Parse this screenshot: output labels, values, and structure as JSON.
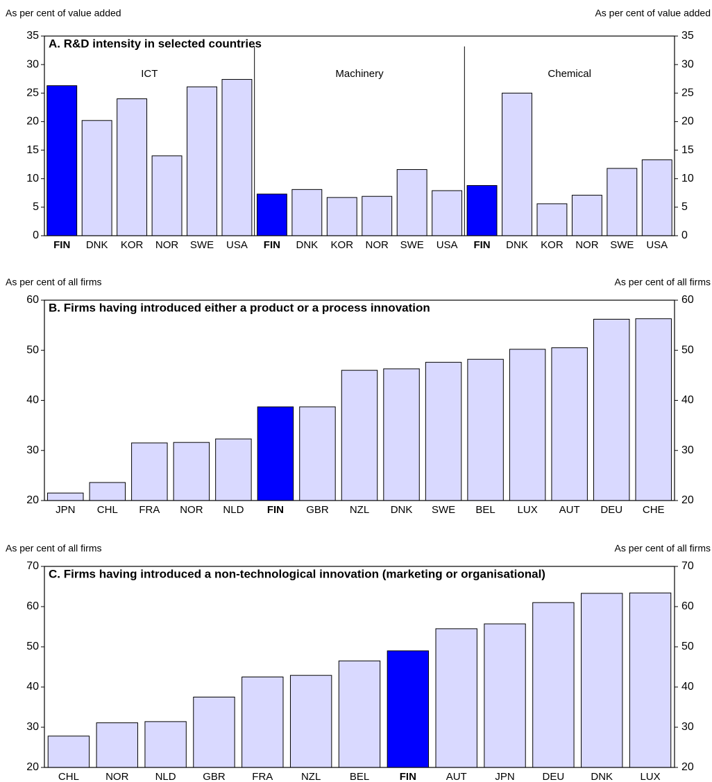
{
  "chart_data": [
    {
      "type": "bar",
      "title": "A. R&D intensity in selected countries",
      "y_label": "As per cent of value added",
      "y2_label": "As per cent of value added",
      "groups": [
        "ICT",
        "Machinery",
        "Chemical"
      ],
      "categories": [
        "FIN",
        "DNK",
        "KOR",
        "NOR",
        "SWE",
        "USA",
        "FIN",
        "DNK",
        "KOR",
        "NOR",
        "SWE",
        "USA",
        "FIN",
        "DNK",
        "KOR",
        "NOR",
        "SWE",
        "USA"
      ],
      "values": [
        26.3,
        20.2,
        24.0,
        14.0,
        26.1,
        27.4,
        7.3,
        8.1,
        6.7,
        6.9,
        11.6,
        7.9,
        8.8,
        25.0,
        5.6,
        7.1,
        11.8,
        13.3
      ],
      "color": "#d9d9ff",
      "highlight": "FIN",
      "highlight_color": "#0000ff",
      "ylim": [
        0,
        35
      ],
      "yticks": [
        0,
        5,
        10,
        15,
        20,
        25,
        30,
        35
      ],
      "y2lim": [
        0,
        35
      ],
      "y2ticks": [
        0,
        5,
        10,
        15,
        20,
        25,
        30,
        35
      ]
    },
    {
      "type": "bar",
      "title": "B. Firms having introduced either a product or a process innovation",
      "y_label": "As per cent of all firms",
      "y2_label": "As per cent of all firms",
      "categories": [
        "JPN",
        "CHL",
        "FRA",
        "NOR",
        "NLD",
        "FIN",
        "GBR",
        "NZL",
        "DNK",
        "SWE",
        "BEL",
        "LUX",
        "AUT",
        "DEU",
        "CHE"
      ],
      "values": [
        21.5,
        23.6,
        31.5,
        31.6,
        32.3,
        38.7,
        38.7,
        46.0,
        46.3,
        47.6,
        48.2,
        50.2,
        50.5,
        56.2,
        56.3
      ],
      "color": "#d9d9ff",
      "highlight": "FIN",
      "highlight_color": "#0000ff",
      "ylim": [
        20,
        60
      ],
      "yticks": [
        20,
        30,
        40,
        50,
        60
      ],
      "y2lim": [
        20,
        60
      ],
      "y2ticks": [
        20,
        30,
        40,
        50,
        60
      ]
    },
    {
      "type": "bar",
      "title": "C. Firms having introduced a non-technological innovation (marketing or organisational)",
      "y_label": "As per cent of all firms",
      "y2_label": "As per cent of all firms",
      "categories": [
        "CHL",
        "NOR",
        "NLD",
        "GBR",
        "FRA",
        "NZL",
        "BEL",
        "FIN",
        "AUT",
        "JPN",
        "DEU",
        "DNK",
        "LUX"
      ],
      "values": [
        27.8,
        31.1,
        31.4,
        37.5,
        42.5,
        42.9,
        46.5,
        49.0,
        54.5,
        55.7,
        61.0,
        63.3,
        63.4
      ],
      "color": "#d9d9ff",
      "highlight": "FIN",
      "highlight_color": "#0000ff",
      "ylim": [
        20,
        70
      ],
      "yticks": [
        20,
        30,
        40,
        50,
        60,
        70
      ],
      "y2lim": [
        20,
        70
      ],
      "y2ticks": [
        20,
        30,
        40,
        50,
        60,
        70
      ]
    }
  ]
}
